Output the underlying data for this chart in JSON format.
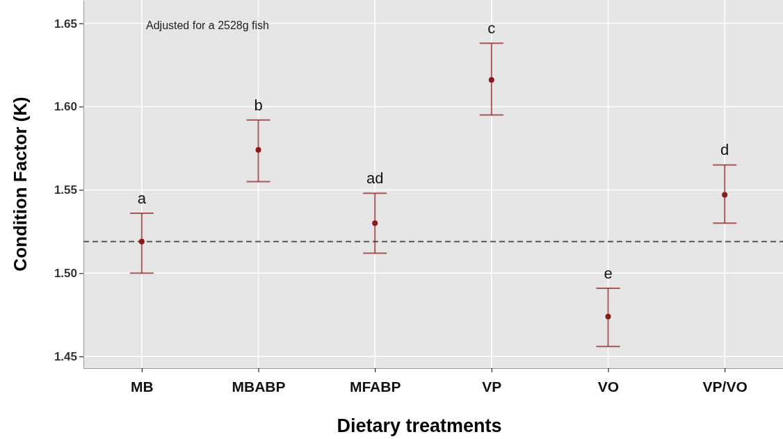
{
  "chart_data": {
    "type": "scatter",
    "xlabel": "Dietary treatments",
    "ylabel": "Condition Factor (K)",
    "categories": [
      "MB",
      "MBABP",
      "MFABP",
      "VP",
      "VO",
      "VP/VO"
    ],
    "series": [
      {
        "color": "#8b1a1a",
        "values": [
          1.519,
          1.574,
          1.53,
          1.616,
          1.474,
          1.547
        ],
        "errors": [
          [
            1.5,
            1.536
          ],
          [
            1.555,
            1.592
          ],
          [
            1.512,
            1.548
          ],
          [
            1.595,
            1.638
          ],
          [
            1.456,
            1.491
          ],
          [
            1.53,
            1.565
          ]
        ]
      }
    ],
    "ylim": [
      1.443,
      1.664
    ],
    "yticks": [
      {
        "value": 1.45,
        "label": "1.45"
      },
      {
        "value": 1.5,
        "label": "1.50"
      },
      {
        "value": 1.55,
        "label": "1.55"
      },
      {
        "value": 1.6,
        "label": "1.60"
      },
      {
        "value": 1.65,
        "label": "1.65"
      }
    ],
    "grid": true,
    "marker": "circle",
    "ref_lines": [
      {
        "axis": "y",
        "value": 1.519,
        "color": "#555555",
        "line_style": "dashed"
      }
    ],
    "annotations": [
      "Adjusted for a 2528g fish",
      {
        "text": "a",
        "x": "MB",
        "y": 1.536
      },
      {
        "text": "b",
        "x": "MBABP",
        "y": 1.592
      },
      {
        "text": "ad",
        "x": "MFABP",
        "y": 1.548
      },
      {
        "text": "c",
        "x": "VP",
        "y": 1.638
      },
      {
        "text": "e",
        "x": "VO",
        "y": 1.491
      },
      {
        "text": "d",
        "x": "VP/VO",
        "y": 1.565
      }
    ]
  }
}
